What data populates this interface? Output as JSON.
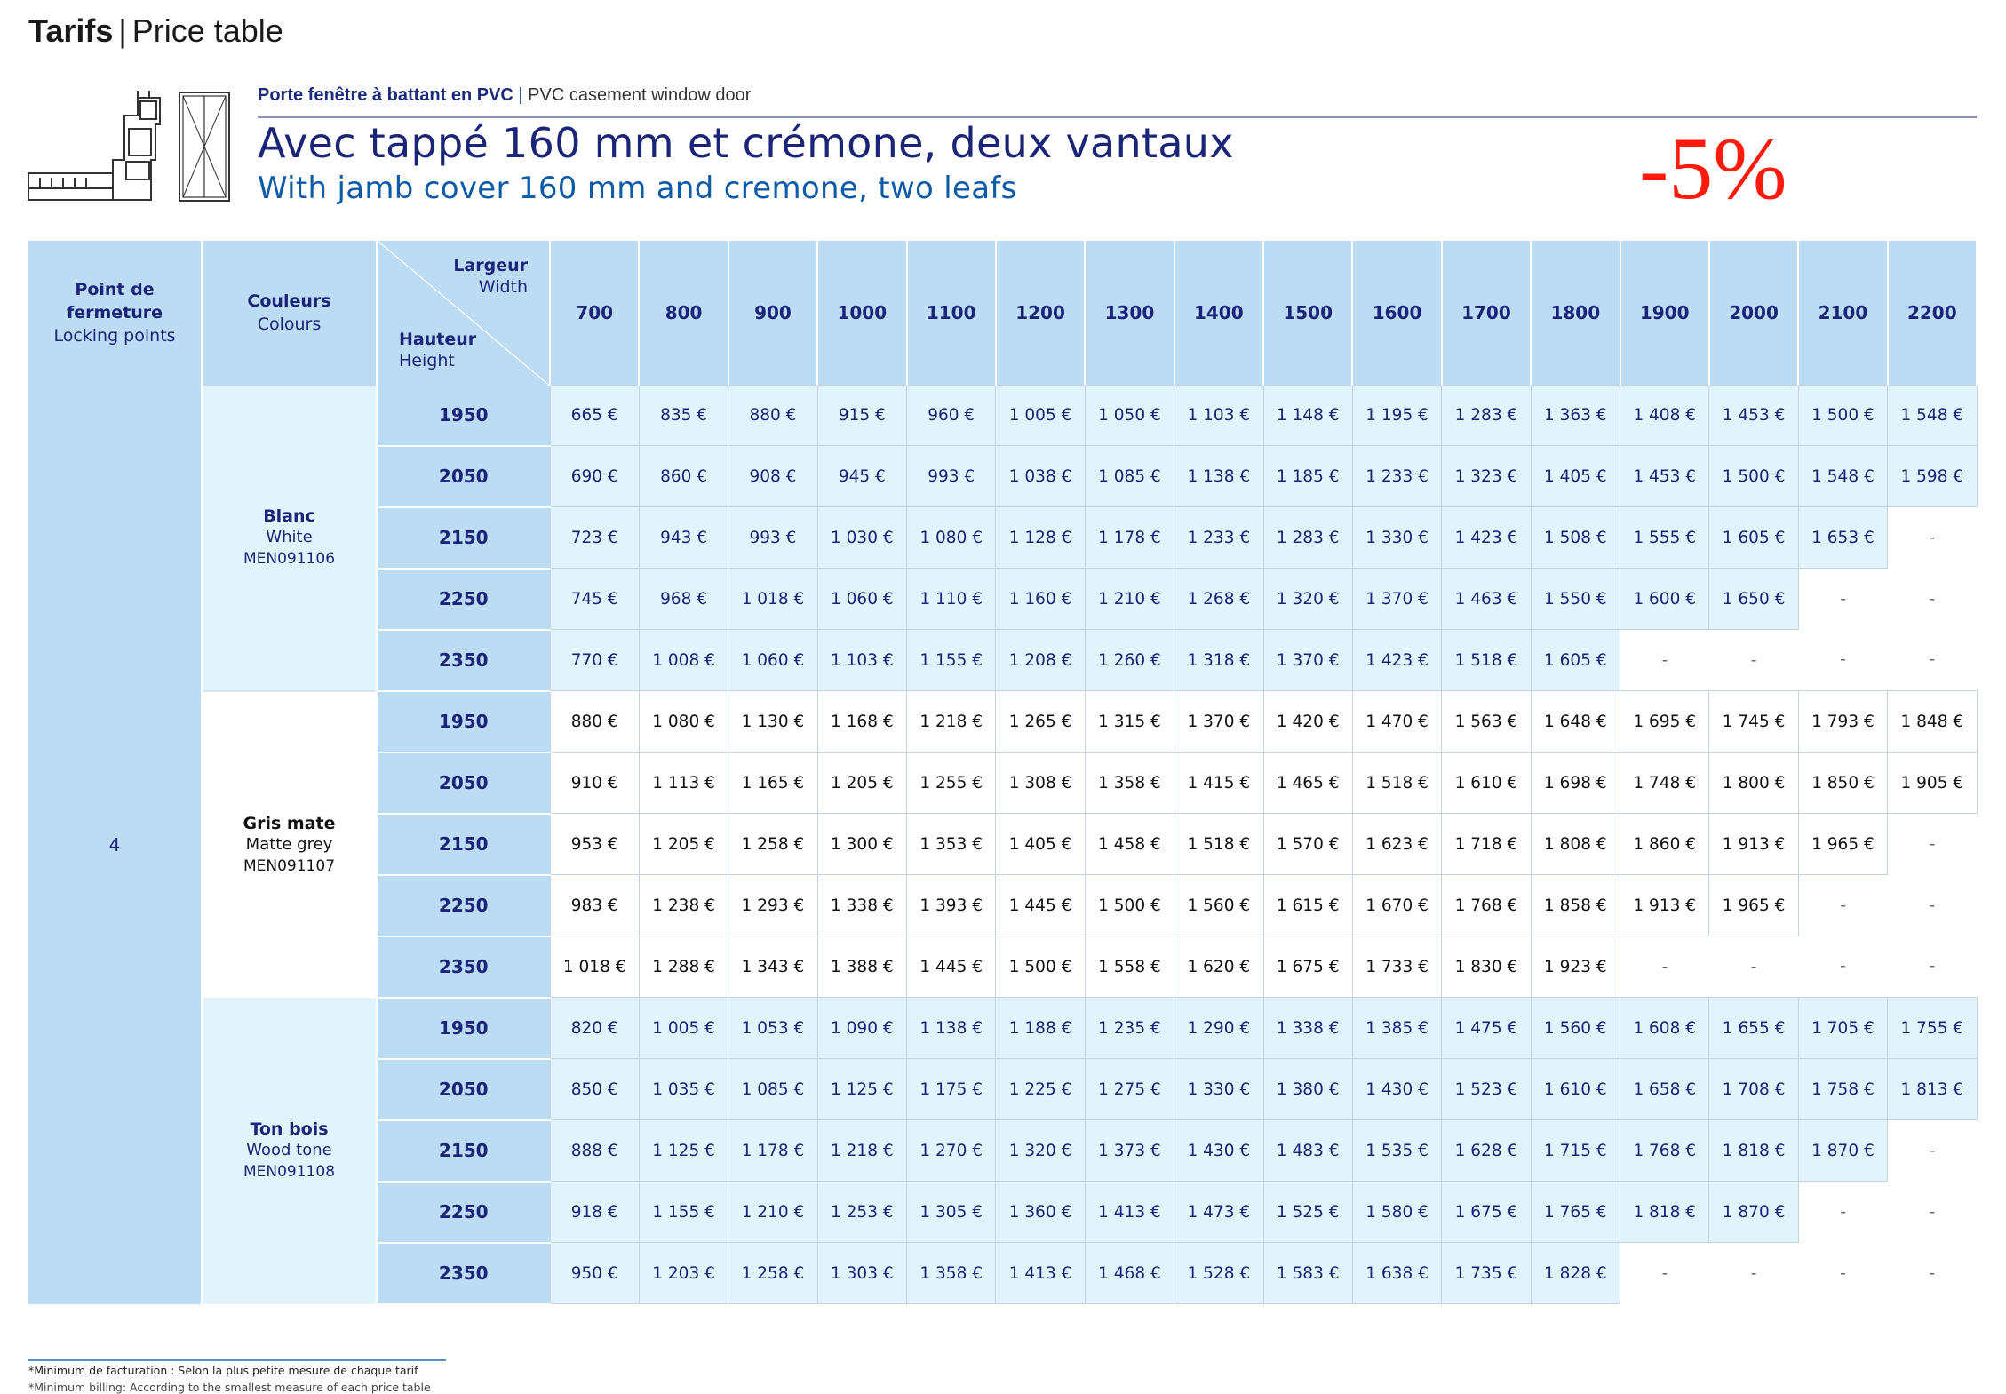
{
  "page": {
    "title_bold": "Tarifs",
    "title_sep": "|",
    "title_rest": "Price table"
  },
  "header": {
    "kicker_fr": "Porte fenêtre à battant en PVC",
    "kicker_sep": "|",
    "kicker_en": "PVC casement window door",
    "title_fr": "Avec tappé 160 mm et crémone, deux vantaux",
    "title_en": "With jamb cover 160 mm and cremone, two leafs",
    "discount": "-5%",
    "diagram_icon": "window-door-profile-diagram"
  },
  "colors": {
    "header_bg": "#bcdcf4",
    "cell_blue_bg": "#e1f4fb",
    "navy_text": "#1b2577",
    "title_blue": "#0d5aa7",
    "discount_red": "#ff1a0a",
    "divider": "#8e93b5"
  },
  "table": {
    "col_locking_fr": "Point de fermeture",
    "col_locking_en": "Locking points",
    "col_colours_fr": "Couleurs",
    "col_colours_en": "Colours",
    "width_fr": "Largeur",
    "width_en": "Width",
    "height_fr": "Hauteur",
    "height_en": "Height",
    "widths": [
      "700",
      "800",
      "900",
      "1000",
      "1100",
      "1200",
      "1300",
      "1400",
      "1500",
      "1600",
      "1700",
      "1800",
      "1900",
      "2000",
      "2100",
      "2200"
    ],
    "locking_points": "4",
    "groups": [
      {
        "name_fr": "Blanc",
        "name_en": "White",
        "code": "MEN091106",
        "rows": [
          {
            "height": "1950",
            "prices": [
              "665 €",
              "835 €",
              "880 €",
              "915 €",
              "960 €",
              "1 005 €",
              "1 050 €",
              "1 103 €",
              "1 148 €",
              "1 195 €",
              "1 283 €",
              "1 363 €",
              "1 408 €",
              "1 453 €",
              "1 500 €",
              "1 548 €"
            ]
          },
          {
            "height": "2050",
            "prices": [
              "690 €",
              "860 €",
              "908 €",
              "945 €",
              "993 €",
              "1 038 €",
              "1 085 €",
              "1 138 €",
              "1 185 €",
              "1 233 €",
              "1 323 €",
              "1 405 €",
              "1 453 €",
              "1 500 €",
              "1 548 €",
              "1 598 €"
            ]
          },
          {
            "height": "2150",
            "prices": [
              "723 €",
              "943 €",
              "993 €",
              "1 030 €",
              "1 080 €",
              "1 128 €",
              "1 178 €",
              "1 233 €",
              "1 283 €",
              "1 330 €",
              "1 423 €",
              "1 508 €",
              "1 555 €",
              "1 605 €",
              "1 653 €",
              "-"
            ]
          },
          {
            "height": "2250",
            "prices": [
              "745 €",
              "968 €",
              "1 018 €",
              "1 060 €",
              "1 110 €",
              "1 160 €",
              "1 210 €",
              "1 268 €",
              "1 320 €",
              "1 370 €",
              "1 463 €",
              "1 550 €",
              "1 600 €",
              "1 650 €",
              "-",
              "-"
            ]
          },
          {
            "height": "2350",
            "prices": [
              "770 €",
              "1 008 €",
              "1 060 €",
              "1 103 €",
              "1 155 €",
              "1 208 €",
              "1 260 €",
              "1 318 €",
              "1 370 €",
              "1 423 €",
              "1 518 €",
              "1 605 €",
              "-",
              "-",
              "-",
              "-"
            ]
          }
        ]
      },
      {
        "name_fr": "Gris mate",
        "name_en": "Matte grey",
        "code": "MEN091107",
        "rows": [
          {
            "height": "1950",
            "prices": [
              "880 €",
              "1 080 €",
              "1 130 €",
              "1 168 €",
              "1 218 €",
              "1 265 €",
              "1 315 €",
              "1 370 €",
              "1 420 €",
              "1 470 €",
              "1 563 €",
              "1 648 €",
              "1 695 €",
              "1 745 €",
              "1 793 €",
              "1 848 €"
            ]
          },
          {
            "height": "2050",
            "prices": [
              "910 €",
              "1 113 €",
              "1 165 €",
              "1 205 €",
              "1 255 €",
              "1 308 €",
              "1 358 €",
              "1 415 €",
              "1 465 €",
              "1 518 €",
              "1 610 €",
              "1 698 €",
              "1 748 €",
              "1 800 €",
              "1 850 €",
              "1 905 €"
            ]
          },
          {
            "height": "2150",
            "prices": [
              "953 €",
              "1 205 €",
              "1 258 €",
              "1 300 €",
              "1 353 €",
              "1 405 €",
              "1 458 €",
              "1 518 €",
              "1 570 €",
              "1 623 €",
              "1 718 €",
              "1 808 €",
              "1 860 €",
              "1 913 €",
              "1 965 €",
              "-"
            ]
          },
          {
            "height": "2250",
            "prices": [
              "983 €",
              "1 238 €",
              "1 293 €",
              "1 338 €",
              "1 393 €",
              "1 445 €",
              "1 500 €",
              "1 560 €",
              "1 615 €",
              "1 670 €",
              "1 768 €",
              "1 858 €",
              "1 913 €",
              "1 965 €",
              "-",
              "-"
            ]
          },
          {
            "height": "2350",
            "prices": [
              "1 018 €",
              "1 288 €",
              "1 343 €",
              "1 388 €",
              "1 445 €",
              "1 500 €",
              "1 558 €",
              "1 620 €",
              "1 675 €",
              "1 733 €",
              "1 830 €",
              "1 923 €",
              "-",
              "-",
              "-",
              "-"
            ]
          }
        ]
      },
      {
        "name_fr": "Ton bois",
        "name_en": "Wood tone",
        "code": "MEN091108",
        "rows": [
          {
            "height": "1950",
            "prices": [
              "820 €",
              "1 005 €",
              "1 053 €",
              "1 090 €",
              "1 138 €",
              "1 188 €",
              "1 235 €",
              "1 290 €",
              "1 338 €",
              "1 385 €",
              "1 475 €",
              "1 560 €",
              "1 608 €",
              "1 655 €",
              "1 705 €",
              "1 755 €"
            ]
          },
          {
            "height": "2050",
            "prices": [
              "850 €",
              "1 035 €",
              "1 085 €",
              "1 125 €",
              "1 175 €",
              "1 225 €",
              "1 275 €",
              "1 330 €",
              "1 380 €",
              "1 430 €",
              "1 523 €",
              "1 610 €",
              "1 658 €",
              "1 708 €",
              "1 758 €",
              "1 813 €"
            ]
          },
          {
            "height": "2150",
            "prices": [
              "888 €",
              "1 125 €",
              "1 178 €",
              "1 218 €",
              "1 270 €",
              "1 320 €",
              "1 373 €",
              "1 430 €",
              "1 483 €",
              "1 535 €",
              "1 628 €",
              "1 715 €",
              "1 768 €",
              "1 818 €",
              "1 870 €",
              "-"
            ]
          },
          {
            "height": "2250",
            "prices": [
              "918 €",
              "1 155 €",
              "1 210 €",
              "1 253 €",
              "1 305 €",
              "1 360 €",
              "1 413 €",
              "1 473 €",
              "1 525 €",
              "1 580 €",
              "1 675 €",
              "1 765 €",
              "1 818 €",
              "1 870 €",
              "-",
              "-"
            ]
          },
          {
            "height": "2350",
            "prices": [
              "950 €",
              "1 203 €",
              "1 258 €",
              "1 303 €",
              "1 358 €",
              "1 413 €",
              "1 468 €",
              "1 528 €",
              "1 583 €",
              "1 638 €",
              "1 735 €",
              "1 828 €",
              "-",
              "-",
              "-",
              "-"
            ]
          }
        ]
      }
    ]
  },
  "footer": {
    "note_fr": "*Minimum de facturation : Selon la plus petite mesure de chaque tarif",
    "note_en": "*Minimum billing: According to the smallest measure of each price table"
  }
}
